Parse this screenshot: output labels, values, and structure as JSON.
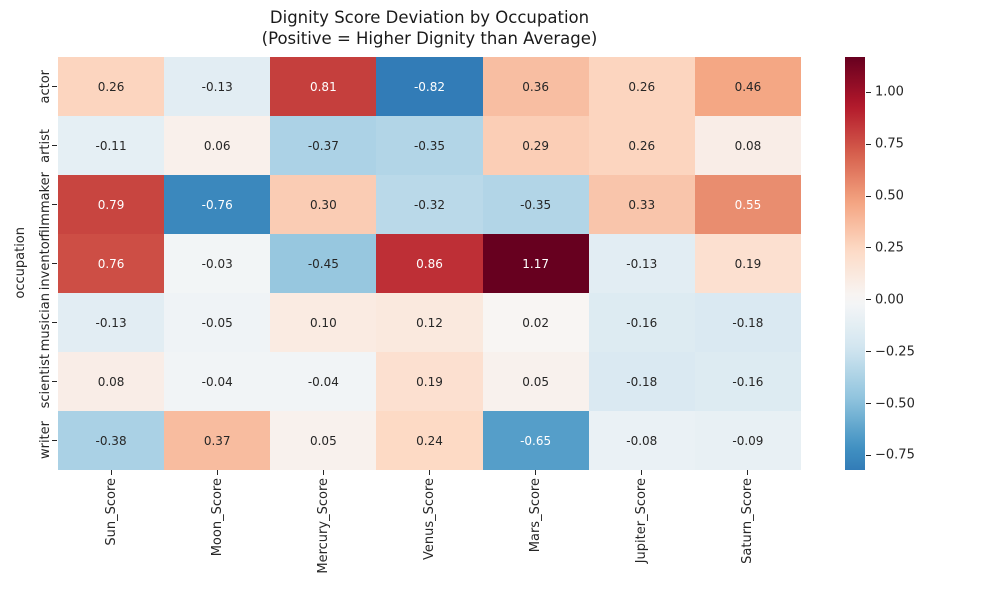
{
  "chart_data": {
    "type": "heatmap",
    "title_line1": "Dignity Score Deviation by Occupation",
    "title_line2": "(Positive = Higher Dignity than Average)",
    "ylabel": "occupation",
    "rows": [
      "actor",
      "artist",
      "filmmaker",
      "inventor",
      "musician",
      "scientist",
      "writer"
    ],
    "columns": [
      "Sun_Score",
      "Moon_Score",
      "Mercury_Score",
      "Venus_Score",
      "Mars_Score",
      "Jupiter_Score",
      "Saturn_Score"
    ],
    "values": [
      [
        0.26,
        -0.13,
        0.81,
        -0.82,
        0.36,
        0.26,
        0.46
      ],
      [
        -0.11,
        0.06,
        -0.37,
        -0.35,
        0.29,
        0.26,
        0.08
      ],
      [
        0.79,
        -0.76,
        0.3,
        -0.32,
        -0.35,
        0.33,
        0.55
      ],
      [
        0.76,
        -0.03,
        -0.45,
        0.86,
        1.17,
        -0.13,
        0.19
      ],
      [
        -0.13,
        -0.05,
        0.1,
        0.12,
        0.02,
        -0.16,
        -0.18
      ],
      [
        0.08,
        -0.04,
        -0.04,
        0.19,
        0.05,
        -0.18,
        -0.16
      ],
      [
        -0.38,
        0.37,
        0.05,
        0.24,
        -0.65,
        -0.08,
        -0.09
      ]
    ],
    "vmin": -0.82,
    "vmax": 1.17,
    "center": 0,
    "annotation_decimals": 2,
    "colormap_name": "RdBu_r",
    "colormap_stops": [
      "#053061",
      "#2166ac",
      "#4393c3",
      "#92c5de",
      "#d1e5f0",
      "#f7f7f7",
      "#fddbc7",
      "#f4a582",
      "#d6604d",
      "#b2182b",
      "#67001f"
    ],
    "colorbar_ticks": [
      {
        "value": 1.0,
        "label": "1.00"
      },
      {
        "value": 0.75,
        "label": "0.75"
      },
      {
        "value": 0.5,
        "label": "0.50"
      },
      {
        "value": 0.25,
        "label": "0.25"
      },
      {
        "value": 0.0,
        "label": "0.00"
      },
      {
        "value": -0.25,
        "label": "−0.25"
      },
      {
        "value": -0.5,
        "label": "−0.50"
      },
      {
        "value": -0.75,
        "label": "−0.75"
      }
    ],
    "legend_position": "right-colorbar",
    "grid": false,
    "colors": {
      "annotation_dark": "#262626",
      "annotation_light": "#ffffff",
      "tick_color": "#262626",
      "background": "#ffffff"
    }
  }
}
